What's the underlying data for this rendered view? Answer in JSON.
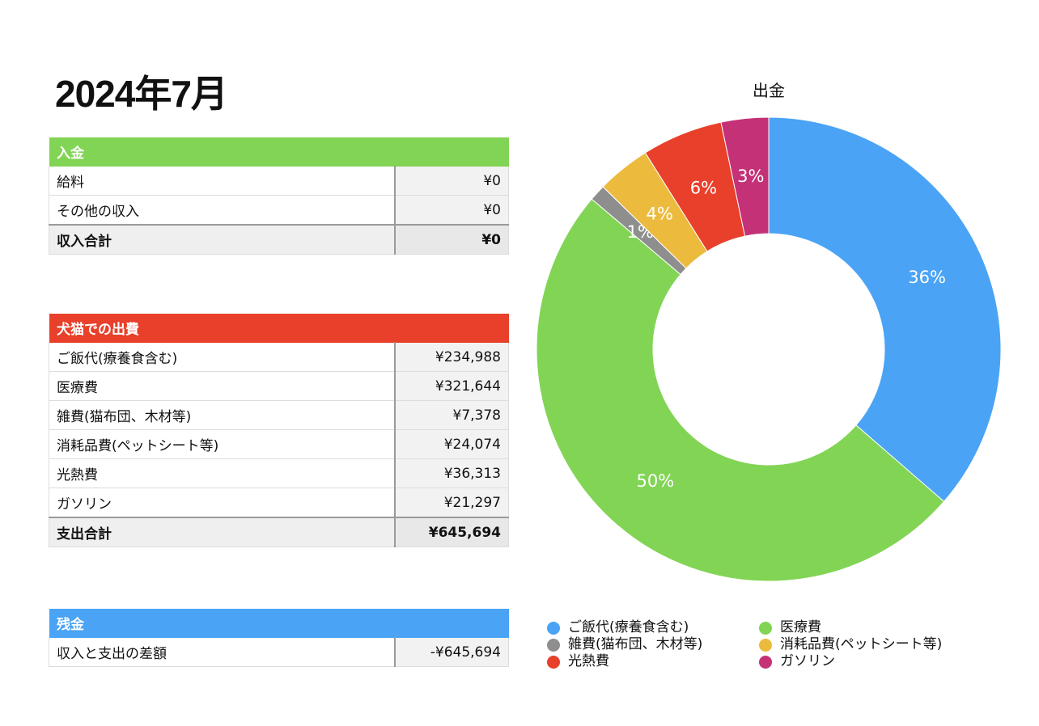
{
  "title": "2024年7月",
  "income": {
    "header": "入金",
    "color": "#82d455",
    "rows": [
      {
        "label": "給料",
        "value": "¥0"
      },
      {
        "label": "その他の収入",
        "value": "¥0"
      }
    ],
    "total": {
      "label": "収入合計",
      "value": "¥0"
    }
  },
  "expense": {
    "header": "犬猫での出費",
    "color": "#e8402a",
    "rows": [
      {
        "label": "ご飯代(療養食含む)",
        "value": "¥234,988"
      },
      {
        "label": "医療費",
        "value": "¥321,644"
      },
      {
        "label": "雑費(猫布団、木材等)",
        "value": "¥7,378"
      },
      {
        "label": "消耗品費(ペットシート等)",
        "value": "¥24,074"
      },
      {
        "label": "光熱費",
        "value": "¥36,313"
      },
      {
        "label": "ガソリン",
        "value": "¥21,297"
      }
    ],
    "total": {
      "label": "支出合計",
      "value": "¥645,694"
    }
  },
  "balance": {
    "header": "残金",
    "color": "#4aa3f5",
    "rows": [
      {
        "label": "収入と支出の差額",
        "value": "-¥645,694"
      }
    ]
  },
  "chart_data": {
    "type": "pie",
    "title": "出金",
    "categories": [
      "ご飯代(療養食含む)",
      "医療費",
      "雑費(猫布団、木材等)",
      "消耗品費(ペットシート等)",
      "光熱費",
      "ガソリン"
    ],
    "values": [
      234988,
      321644,
      7378,
      24074,
      36313,
      21297
    ],
    "labels": [
      "36%",
      "50%",
      "1%",
      "4%",
      "6%",
      "3%"
    ],
    "colors": [
      "#4aa3f5",
      "#82d455",
      "#8e8e8e",
      "#ecbb3e",
      "#e8402a",
      "#c43177"
    ],
    "donut": true,
    "legend_position": "bottom"
  }
}
